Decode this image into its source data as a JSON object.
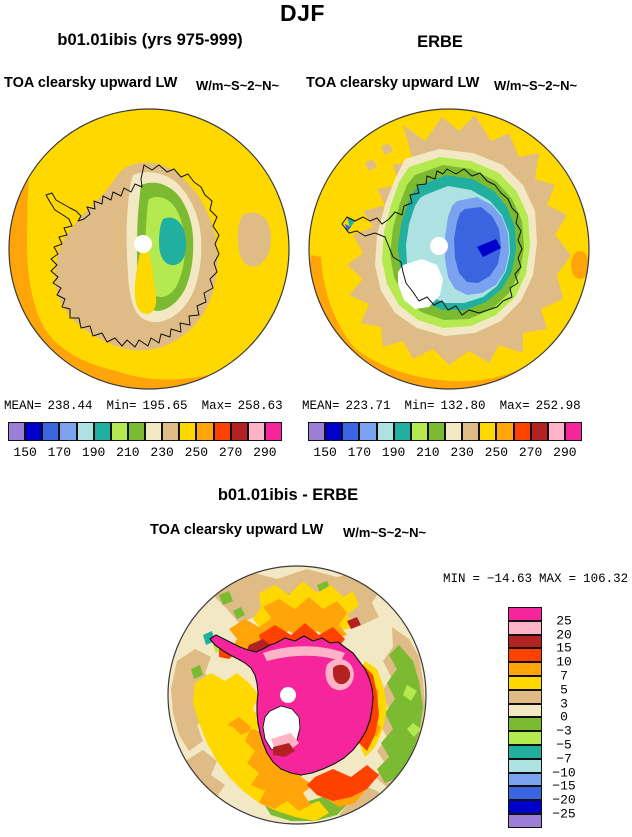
{
  "title": "DJF",
  "panels": [
    {
      "title": "b01.01ibis (yrs 975-999)",
      "var_name": "TOA clearsky upward LW",
      "units": "W/m~S~2~N~",
      "stats": {
        "mean_label": "MEAN=",
        "mean": "238.44",
        "min_label": "Min=",
        "min": "195.65",
        "max_label": "Max=",
        "max": "258.63"
      }
    },
    {
      "title": "ERBE",
      "var_name": "TOA clearsky upward LW",
      "units": "W/m~S~2~N~",
      "stats": {
        "mean_label": "MEAN=",
        "mean": "223.71",
        "min_label": "Min=",
        "min": "132.80",
        "max_label": "Max=",
        "max": "252.98"
      }
    }
  ],
  "colorbar": {
    "tick_labels": [
      "150",
      "170",
      "190",
      "210",
      "230",
      "250",
      "270",
      "290"
    ],
    "colors_low_to_high": [
      "#9B7FD6",
      "#0000CD",
      "#3A64E0",
      "#7AA2EE",
      "#AEE2E2",
      "#21AFA0",
      "#B4E94F",
      "#7CBA32",
      "#F2E9C4",
      "#DFBB85",
      "#FFD800",
      "#FFA50A",
      "#FF4100",
      "#B22222",
      "#FFB3C6",
      "#F7259C"
    ]
  },
  "diff": {
    "title": "b01.01ibis - ERBE",
    "var_name": "TOA clearsky upward LW",
    "units": "W/m~S~2~N~",
    "stats": {
      "min_label": "MIN",
      "min_eq": "=",
      "min": "−14.63",
      "max_label": "MAX",
      "max_eq": "=",
      "max": "106.32"
    },
    "colorbar_labels_top_to_bottom": [
      "25",
      "20",
      "15",
      "10",
      "7",
      "5",
      "3",
      "0",
      "−3",
      "−5",
      "−7",
      "−10",
      "−15",
      "−20",
      "−25"
    ]
  },
  "chart_data": [
    {
      "type": "heatmap",
      "subtype": "south-polar-stereographic-contour-map",
      "title": "b01.01ibis (yrs 975-999)",
      "season": "DJF",
      "variable": "TOA clearsky upward LW",
      "units": "W/m~S~2~N~",
      "stats": {
        "mean": 238.44,
        "min": 195.65,
        "max": 258.63
      },
      "contour_levels": [
        150,
        160,
        170,
        180,
        190,
        200,
        210,
        220,
        230,
        240,
        250,
        260,
        270,
        280,
        290
      ],
      "colorbar_tick_labels": [
        150,
        170,
        190,
        210,
        230,
        250,
        270,
        290
      ],
      "palette": [
        "#9B7FD6",
        "#0000CD",
        "#3A64E0",
        "#7AA2EE",
        "#AEE2E2",
        "#21AFA0",
        "#B4E94F",
        "#7CBA32",
        "#F2E9C4",
        "#DFBB85",
        "#FFD800",
        "#FFA50A",
        "#FF4100",
        "#B22222",
        "#FFB3C6",
        "#F7259C"
      ],
      "legend_position": "below"
    },
    {
      "type": "heatmap",
      "subtype": "south-polar-stereographic-contour-map",
      "title": "ERBE",
      "season": "DJF",
      "variable": "TOA clearsky upward LW",
      "units": "W/m~S~2~N~",
      "stats": {
        "mean": 223.71,
        "min": 132.8,
        "max": 252.98
      },
      "contour_levels": [
        150,
        160,
        170,
        180,
        190,
        200,
        210,
        220,
        230,
        240,
        250,
        260,
        270,
        280,
        290
      ],
      "colorbar_tick_labels": [
        150,
        170,
        190,
        210,
        230,
        250,
        270,
        290
      ],
      "palette": [
        "#9B7FD6",
        "#0000CD",
        "#3A64E0",
        "#7AA2EE",
        "#AEE2E2",
        "#21AFA0",
        "#B4E94F",
        "#7CBA32",
        "#F2E9C4",
        "#DFBB85",
        "#FFD800",
        "#FFA50A",
        "#FF4100",
        "#B22222",
        "#FFB3C6",
        "#F7259C"
      ],
      "legend_position": "below"
    },
    {
      "type": "heatmap",
      "subtype": "south-polar-stereographic-contour-map-difference",
      "title": "b01.01ibis - ERBE",
      "season": "DJF",
      "variable": "TOA clearsky upward LW",
      "units": "W/m~S~2~N~",
      "stats": {
        "min": -14.63,
        "max": 106.32
      },
      "contour_levels": [
        -25,
        -20,
        -15,
        -10,
        -7,
        -5,
        -3,
        0,
        3,
        5,
        7,
        10,
        15,
        20,
        25
      ],
      "palette_top_to_bottom": [
        "#F7259C",
        "#FFB3C6",
        "#B22222",
        "#FF4100",
        "#FFA50A",
        "#FFD800",
        "#DFBB85",
        "#F2E9C4",
        "#7CBA32",
        "#B4E94F",
        "#21AFA0",
        "#AEE2E2",
        "#7AA2EE",
        "#3A64E0",
        "#0000CD",
        "#9B7FD6"
      ],
      "legend_position": "right"
    }
  ]
}
